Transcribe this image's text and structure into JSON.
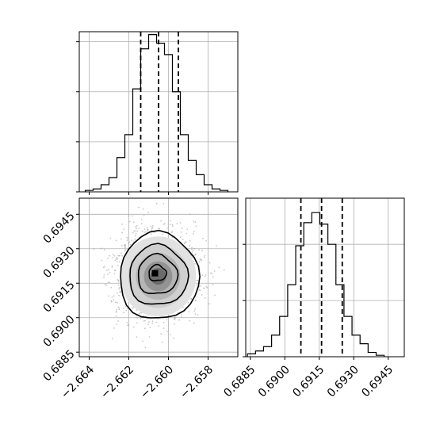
{
  "chart_data": [
    {
      "type": "histogram",
      "panel": "top-left",
      "variable": "x",
      "xlim": [
        -2.6645,
        -2.6565
      ],
      "bins": [
        -2.664,
        -2.6636,
        -2.6632,
        -2.6628,
        -2.6624,
        -2.662,
        -2.6616,
        -2.6612,
        -2.6608,
        -2.6604,
        -2.66,
        -2.6596,
        -2.6592,
        -2.6588,
        -2.6584,
        -2.658,
        -2.6576,
        -2.6572,
        -2.6568
      ],
      "counts": [
        1,
        2,
        5,
        10,
        24,
        40,
        72,
        100,
        110,
        104,
        96,
        70,
        40,
        22,
        12,
        5,
        2,
        1
      ],
      "quantiles": [
        -2.6614,
        -2.6605,
        -2.6595
      ],
      "grid": true
    },
    {
      "type": "scatter-contour",
      "panel": "bottom-left",
      "xvar": "x",
      "yvar": "y",
      "xlim": [
        -2.6645,
        -2.6565
      ],
      "ylim": [
        0.6883,
        0.6952
      ],
      "center": [
        -2.6606,
        0.6919
      ],
      "xticks": [
        "−2.664",
        "−2.662",
        "−2.660",
        "−2.658"
      ],
      "yticks": [
        "0.6885",
        "0.6900",
        "0.6915",
        "0.6930",
        "0.6945"
      ],
      "grid": true
    },
    {
      "type": "histogram",
      "panel": "bottom-right",
      "variable": "y",
      "xlim": [
        0.6883,
        0.6952
      ],
      "bins": [
        0.68855,
        0.6889,
        0.68925,
        0.6896,
        0.68995,
        0.6903,
        0.69065,
        0.691,
        0.69135,
        0.6917,
        0.69205,
        0.6924,
        0.69275,
        0.6931,
        0.69345,
        0.6938,
        0.69415,
        0.6945
      ],
      "counts": [
        2,
        4,
        7,
        15,
        28,
        50,
        77,
        93,
        100,
        92,
        78,
        50,
        28,
        15,
        9,
        3,
        1
      ],
      "quantiles": [
        0.6907,
        0.6916,
        0.6925
      ],
      "xticks": [
        "0.6885",
        "0.6900",
        "0.6915",
        "0.6930",
        "0.6945"
      ],
      "grid": true
    }
  ]
}
